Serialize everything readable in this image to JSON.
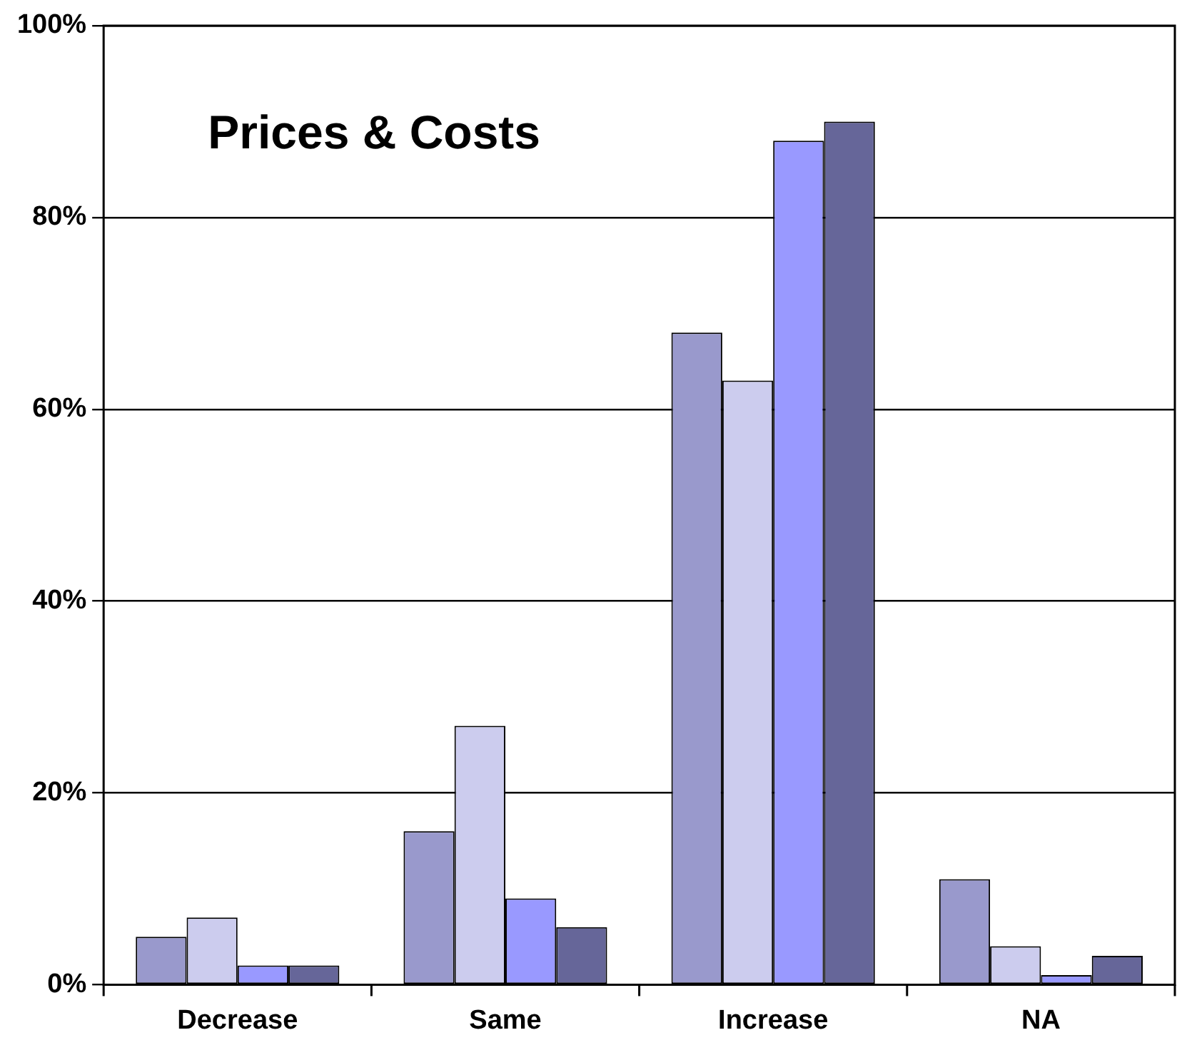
{
  "chart_data": {
    "type": "bar",
    "title": "Prices & Costs",
    "categories": [
      "Decrease",
      "Same",
      "Increase",
      "NA"
    ],
    "series": [
      {
        "color": "#9999cc",
        "values": [
          5,
          16,
          68,
          11
        ]
      },
      {
        "color": "#ccccee",
        "values": [
          7,
          27,
          63,
          4
        ]
      },
      {
        "color": "#9999ff",
        "values": [
          2,
          9,
          88,
          1
        ]
      },
      {
        "color": "#666699",
        "values": [
          2,
          6,
          90,
          3
        ]
      }
    ],
    "ylim": [
      0,
      100
    ],
    "yticks": [
      {
        "value": 0,
        "label": "0%"
      },
      {
        "value": 20,
        "label": "20%"
      },
      {
        "value": 40,
        "label": "40%"
      },
      {
        "value": 60,
        "label": "60%"
      },
      {
        "value": 80,
        "label": "80%"
      },
      {
        "value": 100,
        "label": "100%"
      }
    ],
    "grid": "y",
    "legend": false
  }
}
